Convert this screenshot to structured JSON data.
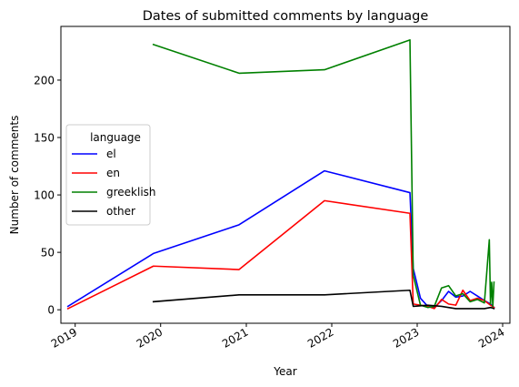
{
  "chart_data": {
    "type": "line",
    "title": "Dates of submitted comments by language",
    "xlabel": "Year",
    "ylabel": "Number of comments",
    "xlim": [
      "2018-11-01",
      "2024-02-01"
    ],
    "ylim": [
      -11.75,
      246.75
    ],
    "x_ticks": [
      "2019-01-01",
      "2020-01-01",
      "2021-01-01",
      "2022-01-01",
      "2023-01-01",
      "2024-01-01"
    ],
    "x_tick_labels": [
      "2019",
      "2020",
      "2021",
      "2022",
      "2023",
      "2024"
    ],
    "y_ticks": [
      0,
      50,
      100,
      150,
      200
    ],
    "grid": false,
    "legend": {
      "title": "language",
      "placement": "center-left"
    },
    "series": [
      {
        "name": "el",
        "color": "#0000ff",
        "points": [
          [
            "2018-12-01",
            3
          ],
          [
            "2019-12-01",
            49
          ],
          [
            "2020-12-01",
            74
          ],
          [
            "2021-12-01",
            121
          ],
          [
            "2022-12-01",
            102
          ],
          [
            "2022-12-15",
            36
          ],
          [
            "2023-01-15",
            10
          ],
          [
            "2023-02-15",
            3
          ],
          [
            "2023-03-15",
            2
          ],
          [
            "2023-04-15",
            8
          ],
          [
            "2023-05-15",
            16
          ],
          [
            "2023-06-15",
            11
          ],
          [
            "2023-07-15",
            12
          ],
          [
            "2023-08-15",
            16
          ],
          [
            "2023-09-15",
            12
          ],
          [
            "2023-10-15",
            8
          ],
          [
            "2023-11-10",
            5
          ],
          [
            "2023-11-25",
            2
          ]
        ]
      },
      {
        "name": "en",
        "color": "#ff0000",
        "points": [
          [
            "2018-12-01",
            1
          ],
          [
            "2019-12-01",
            38
          ],
          [
            "2020-12-01",
            35
          ],
          [
            "2021-12-01",
            95
          ],
          [
            "2022-12-01",
            84
          ],
          [
            "2022-12-15",
            5
          ],
          [
            "2023-01-15",
            4
          ],
          [
            "2023-02-15",
            3
          ],
          [
            "2023-03-15",
            1
          ],
          [
            "2023-04-15",
            9
          ],
          [
            "2023-05-15",
            5
          ],
          [
            "2023-06-15",
            4
          ],
          [
            "2023-07-15",
            17
          ],
          [
            "2023-08-15",
            8
          ],
          [
            "2023-09-15",
            10
          ],
          [
            "2023-10-15",
            8
          ],
          [
            "2023-11-10",
            4
          ],
          [
            "2023-11-25",
            2
          ]
        ]
      },
      {
        "name": "greeklish",
        "color": "#008000",
        "points": [
          [
            "2019-12-01",
            231
          ],
          [
            "2020-12-01",
            206
          ],
          [
            "2021-12-01",
            209
          ],
          [
            "2022-12-01",
            235
          ],
          [
            "2022-12-15",
            30
          ],
          [
            "2023-01-15",
            4
          ],
          [
            "2023-02-15",
            2
          ],
          [
            "2023-03-15",
            3
          ],
          [
            "2023-04-15",
            19
          ],
          [
            "2023-05-15",
            21
          ],
          [
            "2023-06-15",
            12
          ],
          [
            "2023-07-15",
            14
          ],
          [
            "2023-08-15",
            7
          ],
          [
            "2023-09-15",
            9
          ],
          [
            "2023-10-15",
            6
          ],
          [
            "2023-11-05",
            61
          ],
          [
            "2023-11-10",
            5
          ],
          [
            "2023-11-15",
            24
          ],
          [
            "2023-11-20",
            3
          ],
          [
            "2023-11-25",
            24
          ]
        ]
      },
      {
        "name": "other",
        "color": "#000000",
        "points": [
          [
            "2019-12-01",
            7
          ],
          [
            "2020-12-01",
            13
          ],
          [
            "2021-12-01",
            13
          ],
          [
            "2022-12-01",
            17
          ],
          [
            "2022-12-15",
            3
          ],
          [
            "2023-02-15",
            4
          ],
          [
            "2023-04-15",
            3
          ],
          [
            "2023-05-15",
            2
          ],
          [
            "2023-06-15",
            1
          ],
          [
            "2023-08-15",
            1
          ],
          [
            "2023-10-15",
            1
          ],
          [
            "2023-11-10",
            2
          ],
          [
            "2023-11-25",
            1
          ]
        ]
      }
    ]
  }
}
